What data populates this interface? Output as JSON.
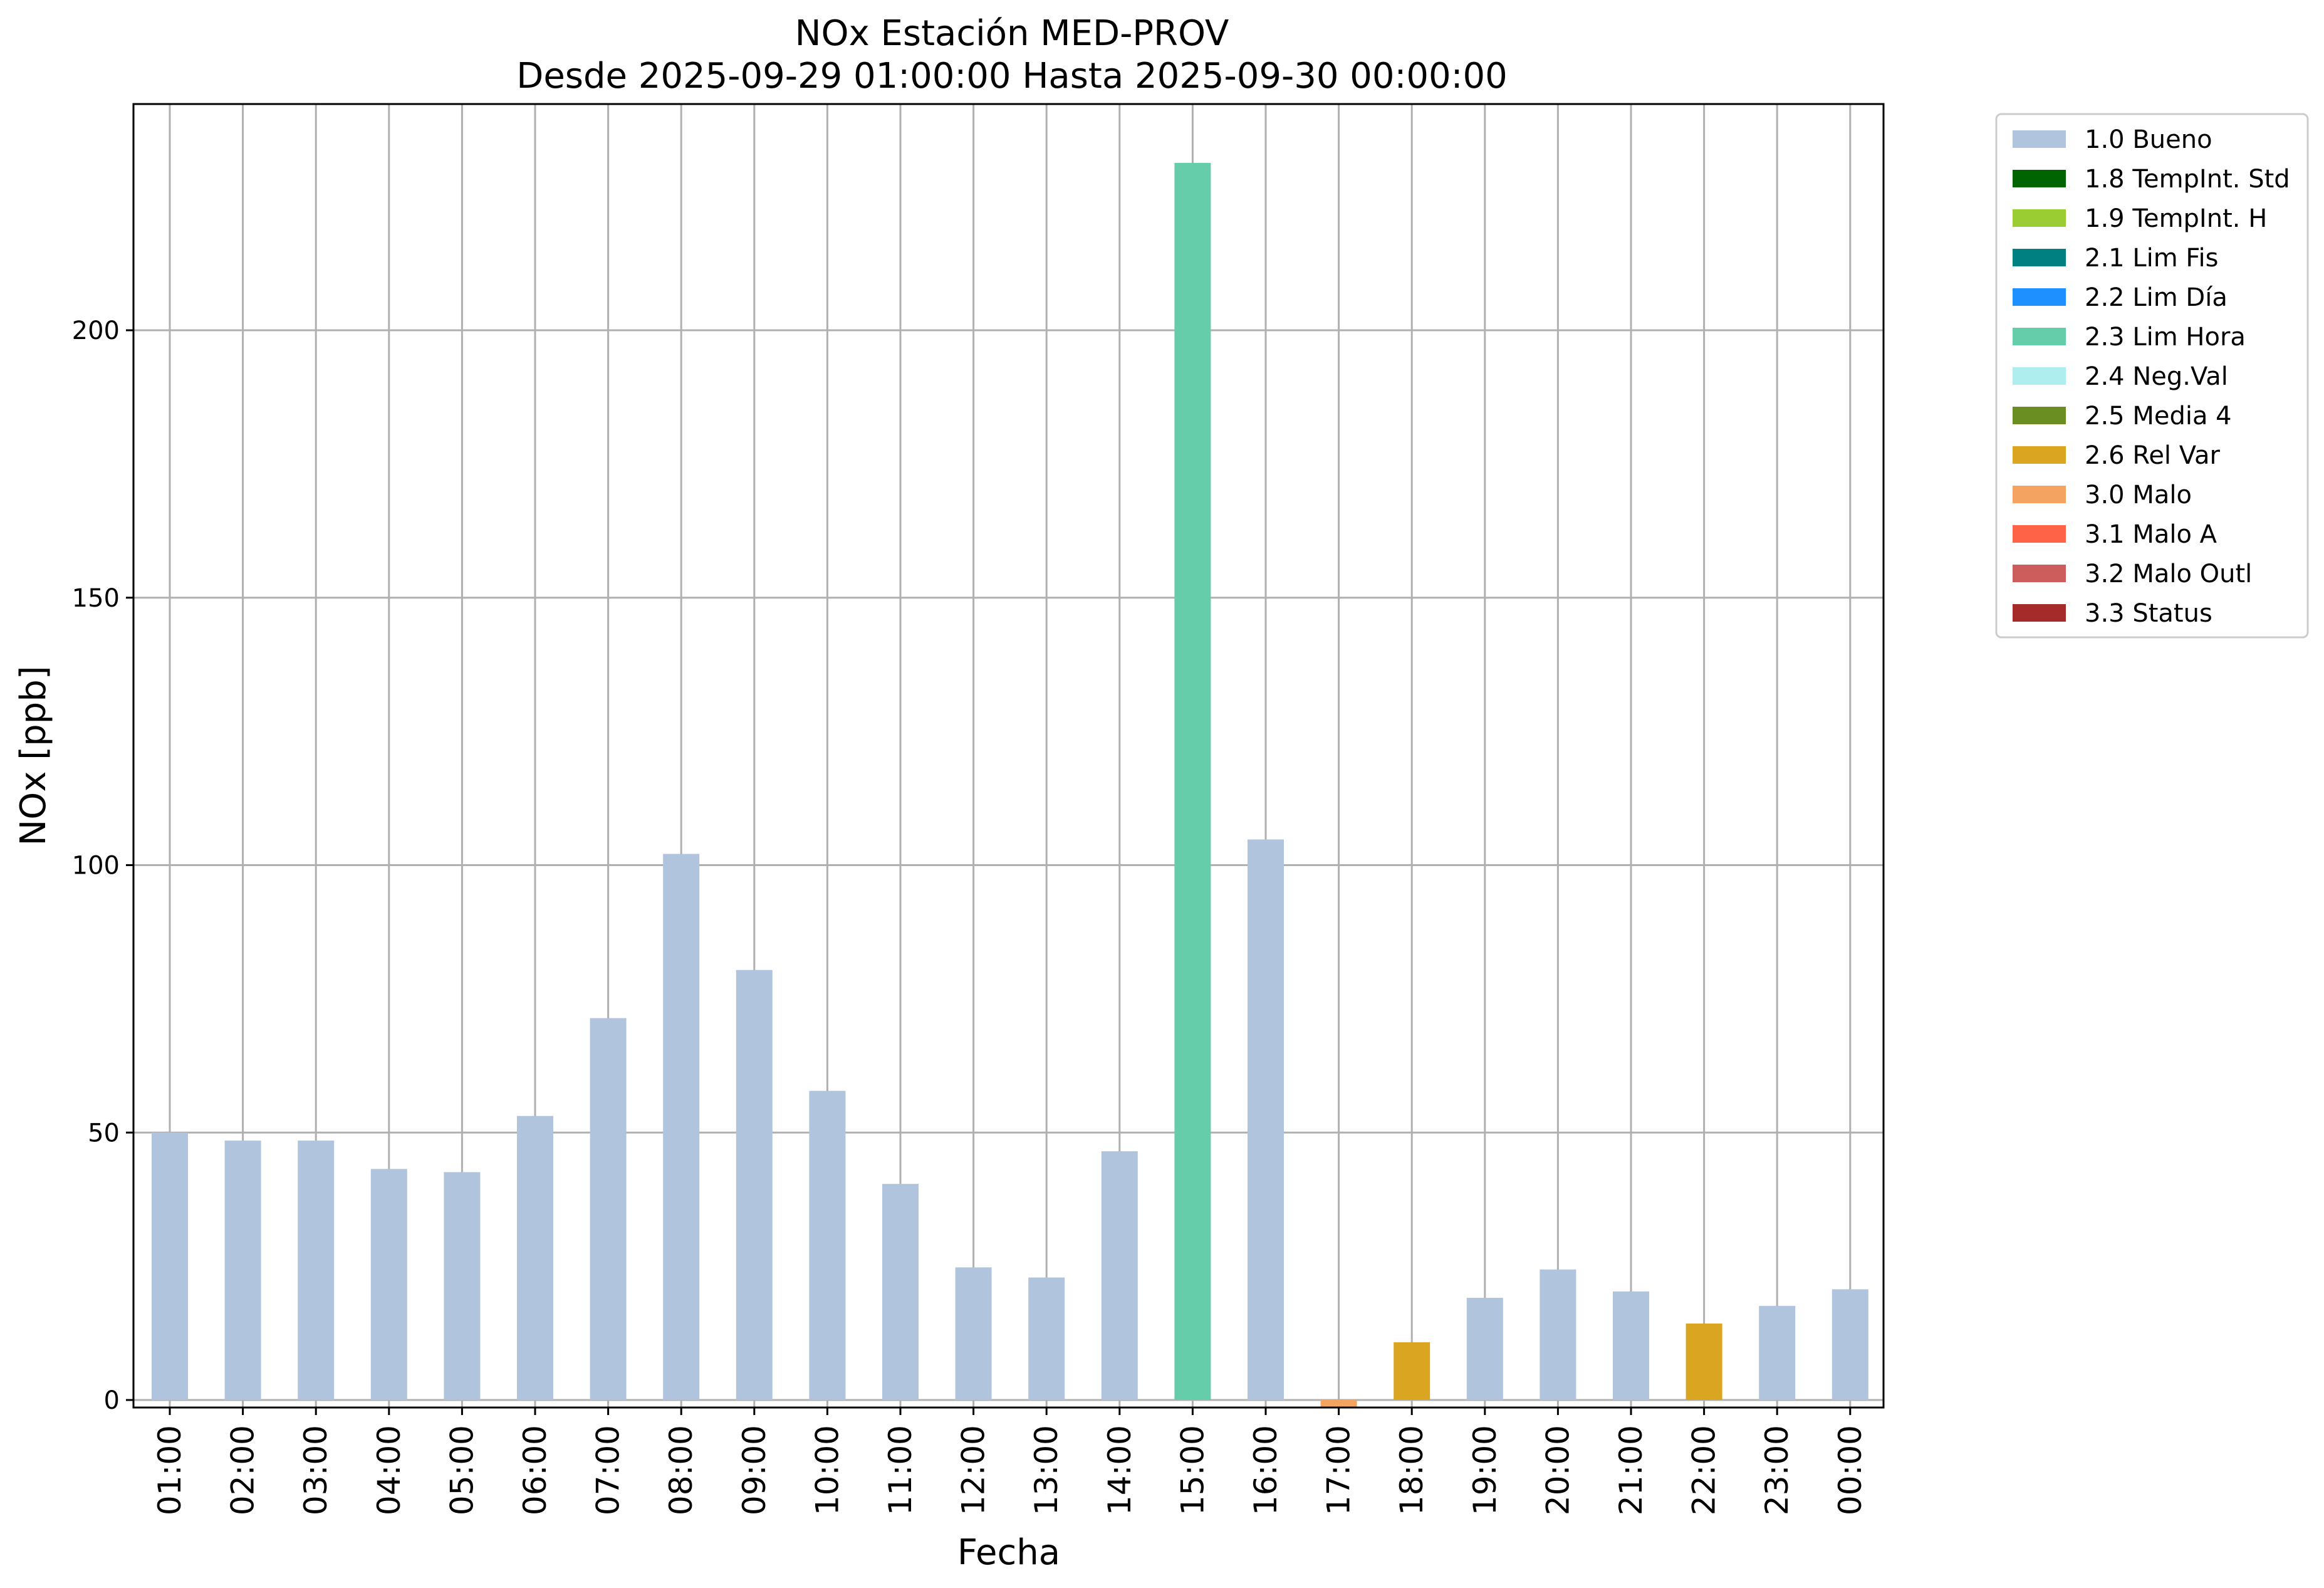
{
  "chart_data": {
    "type": "bar",
    "title": "NOx Estación MED-PROV",
    "subtitle": "Desde 2025-09-29 01:00:00 Hasta 2025-09-30 00:00:00",
    "xlabel": "Fecha",
    "ylabel": "NOx [ppb]",
    "ylim": [
      -1.5,
      242.5
    ],
    "yticks": [
      0,
      50,
      100,
      150,
      200
    ],
    "grid": true,
    "legend_position": "outside-top-right",
    "categories": [
      "01:00",
      "02:00",
      "03:00",
      "04:00",
      "05:00",
      "06:00",
      "07:00",
      "08:00",
      "09:00",
      "10:00",
      "11:00",
      "12:00",
      "13:00",
      "14:00",
      "15:00",
      "16:00",
      "17:00",
      "18:00",
      "19:00",
      "20:00",
      "21:00",
      "22:00",
      "23:00",
      "00:00"
    ],
    "values": [
      50.0,
      48.5,
      48.5,
      43.2,
      42.6,
      53.1,
      71.4,
      102.1,
      80.4,
      57.8,
      40.4,
      24.8,
      22.9,
      46.5,
      231.3,
      104.8,
      -1.5,
      10.8,
      19.1,
      24.4,
      20.3,
      14.3,
      17.6,
      20.7
    ],
    "flags": [
      "1.0 Bueno",
      "1.0 Bueno",
      "1.0 Bueno",
      "1.0 Bueno",
      "1.0 Bueno",
      "1.0 Bueno",
      "1.0 Bueno",
      "1.0 Bueno",
      "1.0 Bueno",
      "1.0 Bueno",
      "1.0 Bueno",
      "1.0 Bueno",
      "1.0 Bueno",
      "1.0 Bueno",
      "2.3 Lim Hora",
      "1.0 Bueno",
      "3.0 Malo",
      "2.6 Rel Var",
      "1.0 Bueno",
      "1.0 Bueno",
      "1.0 Bueno",
      "2.6 Rel Var",
      "1.0 Bueno",
      "1.0 Bueno"
    ],
    "legend": [
      {
        "label": "1.0 Bueno",
        "color": "#b0c4de"
      },
      {
        "label": "1.8 TempInt. Std",
        "color": "#006400"
      },
      {
        "label": "1.9 TempInt. H",
        "color": "#9acd32"
      },
      {
        "label": "2.1 Lim Fis",
        "color": "#008080"
      },
      {
        "label": "2.2 Lim Día",
        "color": "#1e90ff"
      },
      {
        "label": "2.3 Lim Hora",
        "color": "#66cdaa"
      },
      {
        "label": "2.4 Neg.Val",
        "color": "#afeeee"
      },
      {
        "label": "2.5 Media 4",
        "color": "#6b8e23"
      },
      {
        "label": "2.6 Rel Var",
        "color": "#daa520"
      },
      {
        "label": "3.0 Malo",
        "color": "#f4a460"
      },
      {
        "label": "3.1 Malo A",
        "color": "#ff6347"
      },
      {
        "label": "3.2 Malo Outl",
        "color": "#cd5c5c"
      },
      {
        "label": "3.3 Status",
        "color": "#a52a2a"
      }
    ]
  }
}
